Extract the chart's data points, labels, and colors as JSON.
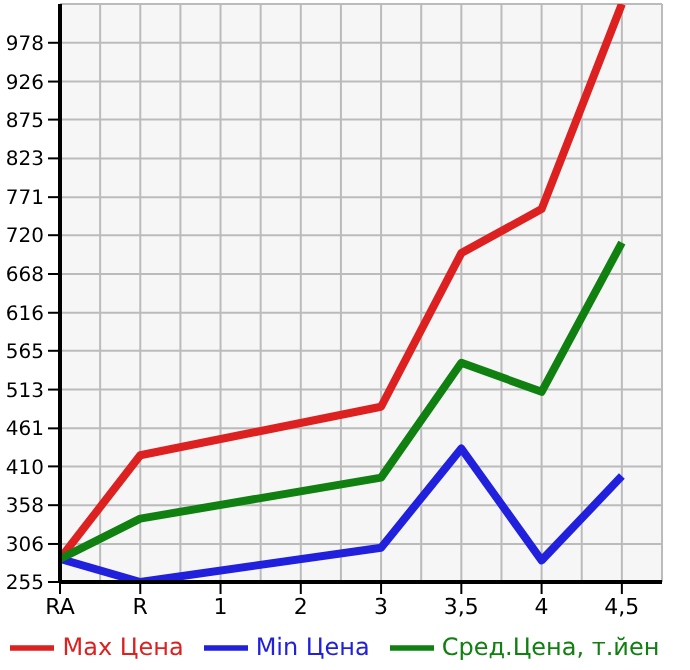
{
  "chart_data": {
    "type": "line",
    "categories": [
      "RA",
      "R",
      "1",
      "2",
      "3",
      "3,5",
      "4",
      "4,5"
    ],
    "series": [
      {
        "name": "Max Цена",
        "color": "#dd2020",
        "values": [
          286,
          425,
          null,
          null,
          490,
          696,
          755,
          1030
        ]
      },
      {
        "name": "Min Цена",
        "color": "#2020dd",
        "values": [
          286,
          255,
          null,
          null,
          301,
          434,
          284,
          397
        ]
      },
      {
        "name": "Сред.Цена, т.йен",
        "color": "#108010",
        "values": [
          286,
          340,
          null,
          null,
          395,
          549,
          510,
          710
        ]
      }
    ],
    "ylim": [
      255,
      1030
    ],
    "yticks": [
      255,
      306,
      358,
      410,
      461,
      513,
      565,
      616,
      668,
      720,
      771,
      823,
      875,
      926,
      978
    ],
    "grid": true,
    "legend": "bottom",
    "marker": "none",
    "line_style": "solid"
  }
}
